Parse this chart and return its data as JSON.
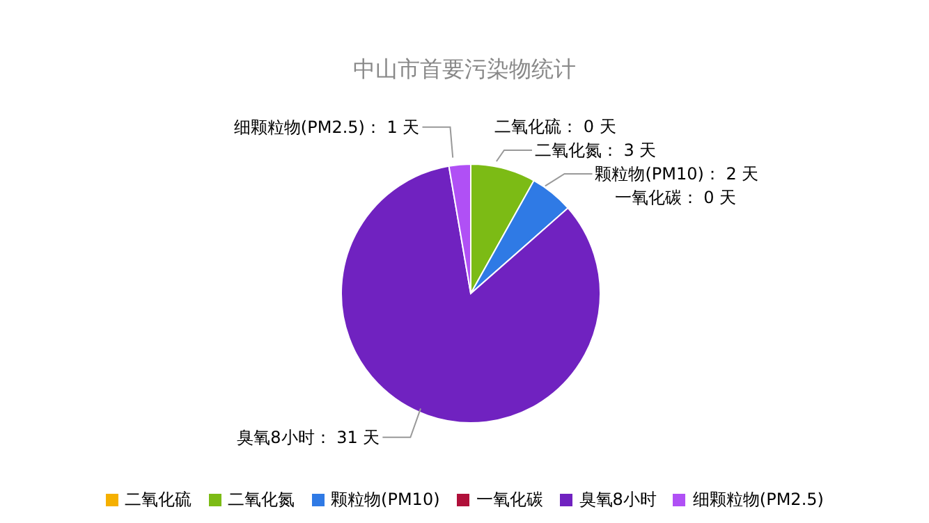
{
  "chart_data": {
    "type": "pie",
    "title": "中山市首要污染物统计",
    "categories": [
      "二氧化硫",
      "二氧化氮",
      "颗粒物(PM10)",
      "一氧化碳",
      "臭氧8小时",
      "细颗粒物(PM2.5)"
    ],
    "values": [
      0,
      3,
      2,
      0,
      31,
      1
    ],
    "value_labels": [
      "二氧化硫： 0 天",
      "二氧化氮： 3 天",
      "颗粒物(PM10)： 2 天",
      "一氧化碳： 0 天",
      "臭氧8小时： 31 天",
      "细颗粒物(PM2.5)： 1 天"
    ],
    "colors": [
      "#f5b000",
      "#7cbb15",
      "#2f7ae5",
      "#b0103a",
      "#7022c0",
      "#b050f5"
    ],
    "legend": "bottom"
  }
}
